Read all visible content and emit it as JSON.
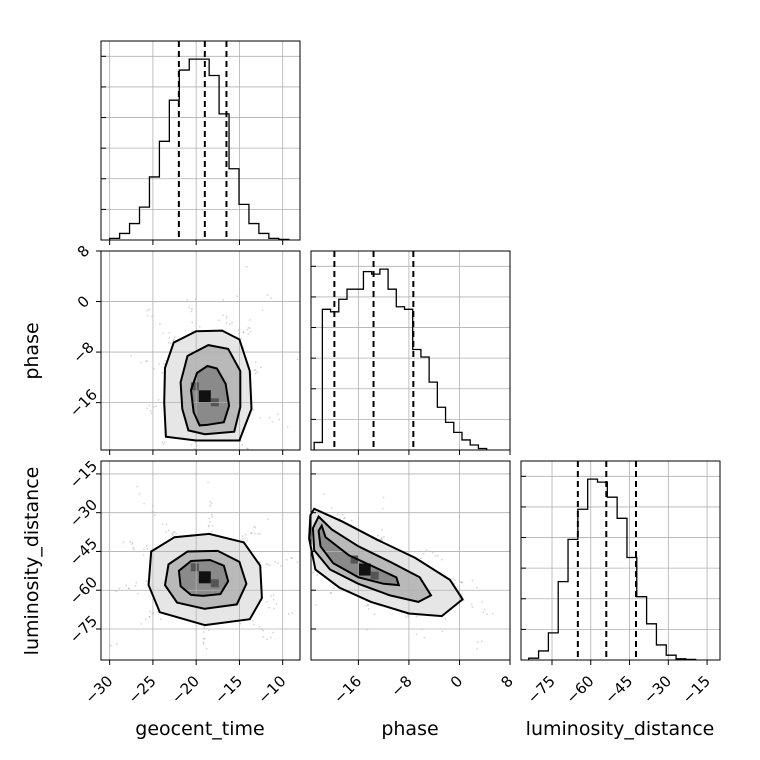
{
  "chart_data": {
    "type": "corner",
    "grid": true,
    "parameters": [
      "geocent_time",
      "phase",
      "luminosity_distance"
    ],
    "axes": {
      "geocent_time": {
        "label": "geocent_time",
        "range": [
          -31,
          -8
        ],
        "ticks": [
          -30,
          -25,
          -20,
          -15,
          -10
        ],
        "tick_labels": [
          "−30",
          "−25",
          "−20",
          "−15",
          "−10"
        ]
      },
      "phase": {
        "label": "phase",
        "range": [
          -23.5,
          8
        ],
        "ticks": [
          -16,
          -8,
          0,
          8
        ],
        "tick_labels": [
          "−16",
          "−8",
          "0",
          "8"
        ]
      },
      "luminosity_distance": {
        "label": "luminosity_distance",
        "range": [
          -87,
          -10
        ],
        "ticks": [
          -75,
          -60,
          -45,
          -30,
          -15
        ],
        "tick_labels": [
          "−75",
          "−60",
          "−45",
          "−30",
          "−15"
        ]
      }
    },
    "marginals": [
      {
        "parameter": "geocent_time",
        "bin_edges": [
          -30,
          -28.85,
          -27.7,
          -26.55,
          -25.4,
          -24.25,
          -23.1,
          -21.95,
          -20.8,
          -19.65,
          -18.5,
          -17.35,
          -16.2,
          -15.05,
          -13.9,
          -12.75,
          -11.6,
          -10.45,
          -9.3
        ],
        "counts": [
          0.3,
          1.2,
          3.0,
          6.0,
          11.5,
          18.0,
          25.5,
          31.0,
          33.0,
          33.0,
          30.0,
          23.0,
          13.0,
          6.5,
          3.0,
          1.2,
          0.3,
          0.1
        ],
        "quantiles": [
          -22.0,
          -19.0,
          -16.5
        ]
      },
      {
        "parameter": "phase",
        "bin_edges": [
          -23,
          -21.7,
          -20.4,
          -19.1,
          -17.8,
          -16.5,
          -15.2,
          -13.9,
          -12.6,
          -11.3,
          -10.0,
          -8.7,
          -7.4,
          -6.1,
          -4.8,
          -3.5,
          -2.2,
          -0.9,
          0.4,
          1.7,
          3.0,
          4.3
        ],
        "counts": [
          1.5,
          28.0,
          27.5,
          30.0,
          32.0,
          32.0,
          35.5,
          35.0,
          36.0,
          32.0,
          28.5,
          28.0,
          20.0,
          18.5,
          13.5,
          8.5,
          5.5,
          3.5,
          2.0,
          1.0,
          0.3
        ],
        "quantiles": [
          -19.8,
          -13.6,
          -7.3
        ]
      },
      {
        "parameter": "luminosity_distance",
        "bin_edges": [
          -84,
          -80.2,
          -76.4,
          -72.6,
          -68.8,
          -65.0,
          -61.2,
          -57.4,
          -53.6,
          -49.8,
          -46.0,
          -42.2,
          -38.4,
          -34.6,
          -30.8,
          -27.0,
          -23.2,
          -19.4
        ],
        "counts": [
          0.3,
          1.5,
          4.5,
          13.0,
          20.0,
          25.0,
          30.0,
          29.5,
          27.0,
          23.5,
          17.0,
          10.5,
          6.0,
          2.5,
          0.8,
          0.2,
          0.1
        ],
        "quantiles": [
          -65.0,
          -54.0,
          -42.5
        ]
      }
    ],
    "joint": [
      {
        "x": "geocent_time",
        "y": "phase",
        "density_peak": [
          -19.0,
          -15.0
        ],
        "contours": [
          [
            [
              -18.6,
              -19.5
            ],
            [
              -16.8,
              -19.1
            ],
            [
              -16.2,
              -16.5
            ],
            [
              -16.6,
              -13.0
            ],
            [
              -17.6,
              -10.6
            ],
            [
              -18.7,
              -10.2
            ],
            [
              -19.9,
              -11.3
            ],
            [
              -20.6,
              -14.0
            ],
            [
              -20.3,
              -17.5
            ],
            [
              -19.6,
              -19.6
            ]
          ],
          [
            [
              -19.0,
              -21.0
            ],
            [
              -15.6,
              -20.6
            ],
            [
              -14.9,
              -16.7
            ],
            [
              -14.9,
              -11.0
            ],
            [
              -16.3,
              -7.5
            ],
            [
              -18.6,
              -6.9
            ],
            [
              -21.0,
              -8.6
            ],
            [
              -21.8,
              -12.8
            ],
            [
              -21.6,
              -17.0
            ],
            [
              -20.9,
              -20.4
            ]
          ],
          [
            [
              -20.0,
              -22.0
            ],
            [
              -15.0,
              -22.0
            ],
            [
              -13.6,
              -17.0
            ],
            [
              -13.8,
              -11.0
            ],
            [
              -15.0,
              -6.0
            ],
            [
              -17.0,
              -4.6
            ],
            [
              -20.0,
              -4.7
            ],
            [
              -22.6,
              -6.5
            ],
            [
              -23.6,
              -10.5
            ],
            [
              -23.7,
              -16.0
            ],
            [
              -23.5,
              -21.4
            ]
          ]
        ]
      },
      {
        "x": "geocent_time",
        "y": "luminosity_distance",
        "density_peak": [
          -19.0,
          -55.0
        ],
        "contours": [
          [
            [
              -19.2,
              -62.2
            ],
            [
              -17.2,
              -61.5
            ],
            [
              -16.3,
              -56.5
            ],
            [
              -16.8,
              -50.5
            ],
            [
              -18.4,
              -48.3
            ],
            [
              -20.6,
              -48.7
            ],
            [
              -22.0,
              -52.5
            ],
            [
              -21.8,
              -58.5
            ],
            [
              -20.6,
              -61.8
            ]
          ],
          [
            [
              -19.0,
              -67.2
            ],
            [
              -15.3,
              -65.5
            ],
            [
              -14.2,
              -57.5
            ],
            [
              -15.0,
              -49.0
            ],
            [
              -17.5,
              -44.8
            ],
            [
              -21.0,
              -45.0
            ],
            [
              -23.2,
              -50.0
            ],
            [
              -23.6,
              -58.0
            ],
            [
              -22.2,
              -64.8
            ]
          ],
          [
            [
              -19.0,
              -73.5
            ],
            [
              -13.8,
              -71.2
            ],
            [
              -12.4,
              -63.0
            ],
            [
              -12.6,
              -50.5
            ],
            [
              -14.5,
              -41.5
            ],
            [
              -18.5,
              -38.2
            ],
            [
              -22.5,
              -39.5
            ],
            [
              -25.2,
              -45.0
            ],
            [
              -25.5,
              -58.0
            ],
            [
              -24.2,
              -68.5
            ]
          ]
        ]
      },
      {
        "x": "phase",
        "y": "luminosity_distance",
        "density_peak": [
          -15.0,
          -52.0
        ],
        "contours": [
          [
            [
              -21.8,
              -35.0
            ],
            [
              -21.2,
              -39.5
            ],
            [
              -17.5,
              -46.5
            ],
            [
              -13.5,
              -51.0
            ],
            [
              -10.0,
              -55.0
            ],
            [
              -9.6,
              -58.0
            ],
            [
              -12.0,
              -57.5
            ],
            [
              -16.0,
              -55.0
            ],
            [
              -20.0,
              -49.5
            ],
            [
              -22.0,
              -43.0
            ],
            [
              -22.3,
              -37.0
            ]
          ],
          [
            [
              -22.3,
              -31.5
            ],
            [
              -20.2,
              -36.5
            ],
            [
              -16.0,
              -43.0
            ],
            [
              -11.0,
              -49.0
            ],
            [
              -6.3,
              -55.0
            ],
            [
              -4.5,
              -62.0
            ],
            [
              -6.5,
              -64.5
            ],
            [
              -11.0,
              -62.0
            ],
            [
              -16.0,
              -57.5
            ],
            [
              -20.5,
              -52.0
            ],
            [
              -23.0,
              -44.5
            ],
            [
              -23.2,
              -36.0
            ]
          ],
          [
            [
              -23.0,
              -28.5
            ],
            [
              -18.5,
              -33.5
            ],
            [
              -13.0,
              -40.5
            ],
            [
              -7.0,
              -47.5
            ],
            [
              -1.5,
              -56.0
            ],
            [
              0.5,
              -63.5
            ],
            [
              -2.8,
              -70.0
            ],
            [
              -8.0,
              -69.0
            ],
            [
              -14.0,
              -64.5
            ],
            [
              -19.0,
              -59.0
            ],
            [
              -22.8,
              -52.0
            ],
            [
              -23.8,
              -40.0
            ],
            [
              -23.6,
              -31.0
            ]
          ]
        ]
      }
    ]
  }
}
